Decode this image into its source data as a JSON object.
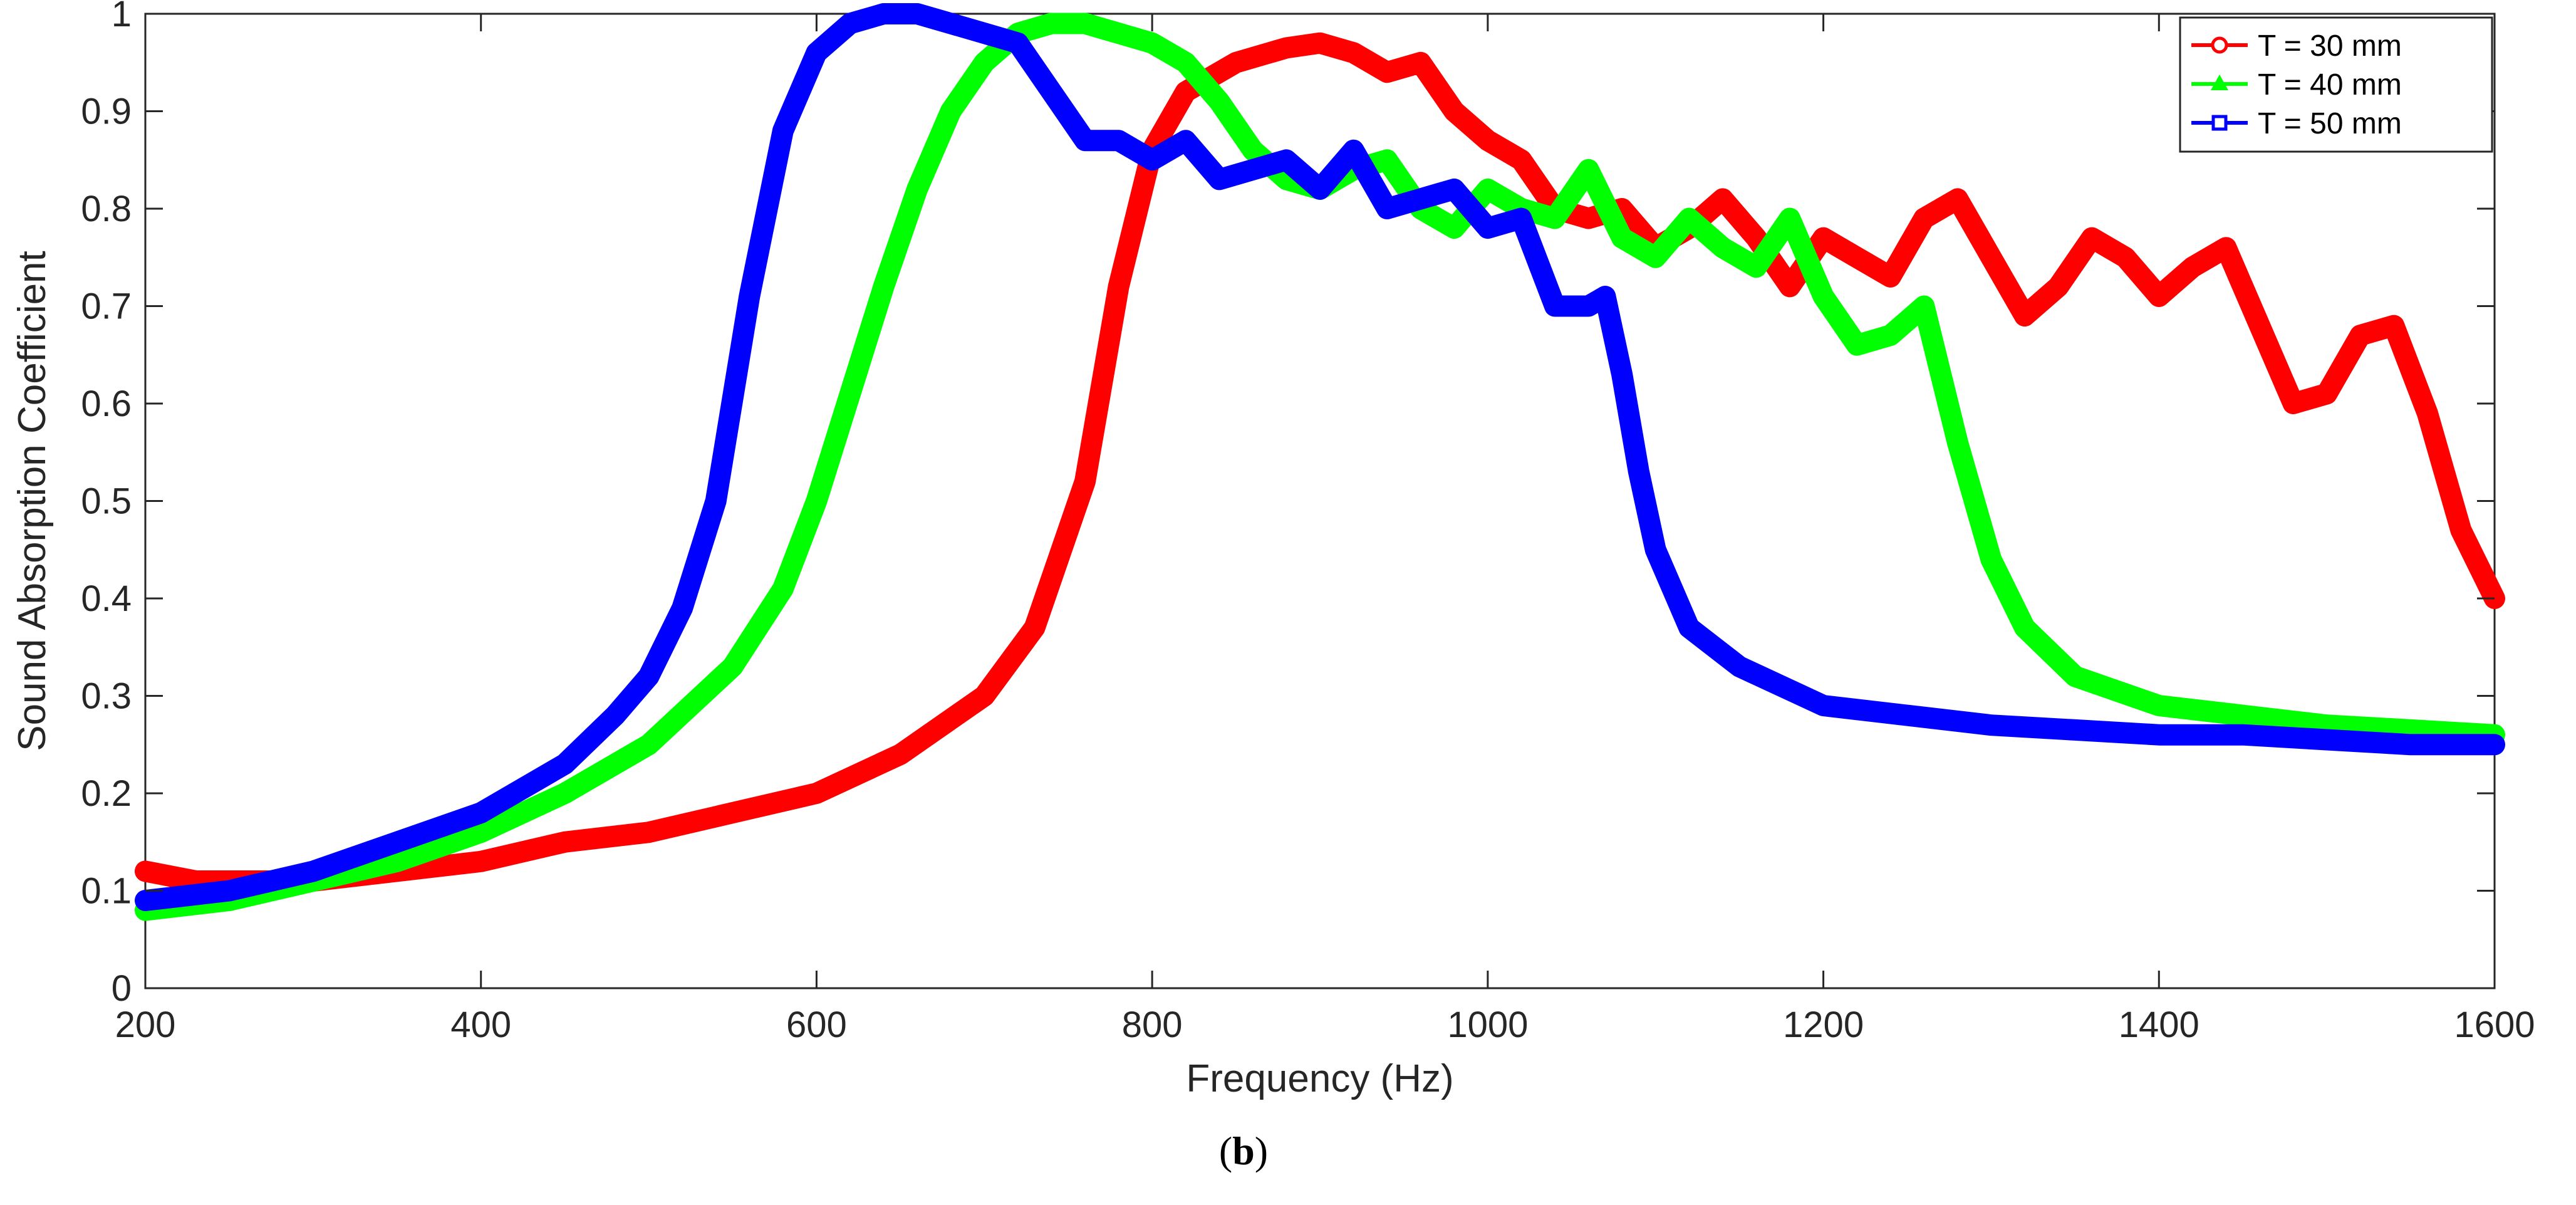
{
  "chart_data": {
    "type": "line",
    "title": "",
    "xlabel": "Frequency (Hz)",
    "ylabel": "Sound Absorption Coefficient",
    "xlim": [
      200,
      1600
    ],
    "ylim": [
      0,
      1
    ],
    "xticks": [
      200,
      400,
      600,
      800,
      1000,
      1200,
      1400,
      1600
    ],
    "yticks": [
      0,
      0.1,
      0.2,
      0.3,
      0.4,
      0.5,
      0.6,
      0.7,
      0.8,
      0.9,
      1
    ],
    "ytick_labels": [
      "0",
      "0.1",
      "0.2",
      "0.3",
      "0.4",
      "0.5",
      "0.6",
      "0.7",
      "0.8",
      "0.9",
      "1"
    ],
    "grid": false,
    "legend_position": "top-right",
    "caption_letter": "b",
    "series": [
      {
        "name": "T = 30 mm",
        "color": "#ff0000",
        "marker": "circle",
        "x": [
          200,
          230,
          260,
          300,
          350,
          400,
          450,
          500,
          550,
          600,
          650,
          700,
          730,
          760,
          780,
          800,
          820,
          850,
          880,
          900,
          920,
          940,
          960,
          980,
          1000,
          1020,
          1040,
          1060,
          1080,
          1100,
          1120,
          1140,
          1160,
          1180,
          1200,
          1220,
          1240,
          1260,
          1280,
          1300,
          1320,
          1340,
          1360,
          1380,
          1400,
          1420,
          1440,
          1460,
          1480,
          1500,
          1520,
          1540,
          1560,
          1580,
          1600
        ],
        "y": [
          0.12,
          0.11,
          0.11,
          0.11,
          0.12,
          0.13,
          0.15,
          0.16,
          0.18,
          0.2,
          0.24,
          0.3,
          0.37,
          0.52,
          0.72,
          0.86,
          0.92,
          0.95,
          0.965,
          0.97,
          0.96,
          0.94,
          0.95,
          0.9,
          0.87,
          0.85,
          0.8,
          0.79,
          0.8,
          0.76,
          0.78,
          0.81,
          0.77,
          0.72,
          0.77,
          0.75,
          0.73,
          0.79,
          0.81,
          0.75,
          0.69,
          0.72,
          0.77,
          0.75,
          0.71,
          0.74,
          0.76,
          0.68,
          0.6,
          0.61,
          0.67,
          0.68,
          0.59,
          0.47,
          0.4
        ]
      },
      {
        "name": "T = 40 mm",
        "color": "#00ff00",
        "marker": "triangle",
        "x": [
          200,
          250,
          300,
          350,
          400,
          450,
          500,
          550,
          580,
          600,
          620,
          640,
          660,
          680,
          700,
          720,
          740,
          760,
          780,
          800,
          820,
          840,
          860,
          880,
          900,
          920,
          940,
          960,
          980,
          1000,
          1020,
          1040,
          1060,
          1080,
          1100,
          1120,
          1140,
          1160,
          1180,
          1200,
          1220,
          1240,
          1260,
          1280,
          1300,
          1320,
          1350,
          1400,
          1450,
          1500,
          1550,
          1600
        ],
        "y": [
          0.08,
          0.09,
          0.11,
          0.13,
          0.16,
          0.2,
          0.25,
          0.33,
          0.41,
          0.5,
          0.61,
          0.72,
          0.82,
          0.9,
          0.95,
          0.98,
          0.99,
          0.99,
          0.98,
          0.97,
          0.95,
          0.91,
          0.86,
          0.83,
          0.82,
          0.84,
          0.85,
          0.8,
          0.78,
          0.82,
          0.8,
          0.79,
          0.84,
          0.77,
          0.75,
          0.79,
          0.76,
          0.74,
          0.79,
          0.71,
          0.66,
          0.67,
          0.7,
          0.56,
          0.44,
          0.37,
          0.32,
          0.29,
          0.28,
          0.27,
          0.265,
          0.26
        ]
      },
      {
        "name": "T = 50 mm",
        "color": "#0000ff",
        "marker": "square",
        "x": [
          200,
          250,
          300,
          350,
          400,
          450,
          480,
          500,
          520,
          540,
          560,
          580,
          600,
          620,
          640,
          660,
          680,
          700,
          720,
          740,
          760,
          780,
          800,
          820,
          840,
          860,
          880,
          900,
          920,
          940,
          960,
          980,
          1000,
          1020,
          1040,
          1060,
          1070,
          1080,
          1090,
          1100,
          1120,
          1150,
          1200,
          1250,
          1300,
          1350,
          1400,
          1450,
          1500,
          1550,
          1600
        ],
        "y": [
          0.09,
          0.1,
          0.12,
          0.15,
          0.18,
          0.23,
          0.28,
          0.32,
          0.39,
          0.5,
          0.71,
          0.88,
          0.96,
          0.99,
          1.0,
          1.0,
          0.99,
          0.98,
          0.97,
          0.92,
          0.87,
          0.87,
          0.85,
          0.87,
          0.83,
          0.84,
          0.85,
          0.82,
          0.86,
          0.8,
          0.81,
          0.82,
          0.78,
          0.79,
          0.7,
          0.7,
          0.71,
          0.63,
          0.53,
          0.45,
          0.37,
          0.33,
          0.29,
          0.28,
          0.27,
          0.265,
          0.26,
          0.26,
          0.255,
          0.25,
          0.25
        ]
      }
    ]
  }
}
